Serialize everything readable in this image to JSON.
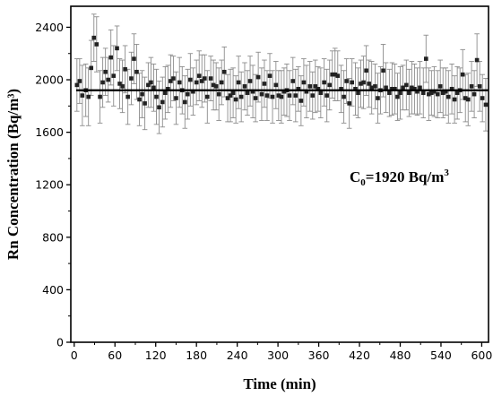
{
  "chart_data": {
    "type": "scatter",
    "title": "",
    "xlabel": "Time (min)",
    "ylabel": "Rn Concentration (Bq/m³)",
    "xlim": [
      -5,
      610
    ],
    "ylim": [
      0,
      2560
    ],
    "x_ticks": [
      0,
      60,
      120,
      180,
      240,
      300,
      360,
      420,
      480,
      540,
      600
    ],
    "y_ticks": [
      0,
      400,
      800,
      1200,
      1600,
      2000,
      2400
    ],
    "grid": false,
    "legend": "none",
    "annotation": {
      "prefix": "C",
      "subscript": "0",
      "text": "=1920 Bq/m",
      "superscript": "3"
    },
    "reference_line": {
      "y": 1920,
      "label": "C0"
    },
    "series": [
      {
        "marker": "square",
        "color": "#222222",
        "error_color": "#8c8c8c",
        "points": [
          [
            4,
            1960,
            200
          ],
          [
            8,
            1990,
            170
          ],
          [
            12,
            1880,
            230
          ],
          [
            17,
            1920,
            200
          ],
          [
            21,
            1870,
            220
          ],
          [
            25,
            2090,
            210
          ],
          [
            29,
            2320,
            180
          ],
          [
            33,
            2270,
            210
          ],
          [
            38,
            1870,
            200
          ],
          [
            42,
            1980,
            190
          ],
          [
            46,
            2060,
            180
          ],
          [
            50,
            2000,
            170
          ],
          [
            54,
            2170,
            210
          ],
          [
            58,
            2030,
            230
          ],
          [
            63,
            2240,
            170
          ],
          [
            67,
            1970,
            190
          ],
          [
            71,
            1950,
            200
          ],
          [
            75,
            2080,
            180
          ],
          [
            79,
            1870,
            210
          ],
          [
            84,
            2010,
            200
          ],
          [
            88,
            2160,
            190
          ],
          [
            92,
            2060,
            210
          ],
          [
            96,
            1850,
            200
          ],
          [
            100,
            1890,
            180
          ],
          [
            104,
            1820,
            200
          ],
          [
            109,
            1960,
            170
          ],
          [
            113,
            1980,
            190
          ],
          [
            117,
            1940,
            180
          ],
          [
            121,
            1870,
            210
          ],
          [
            125,
            1790,
            200
          ],
          [
            130,
            1830,
            190
          ],
          [
            134,
            1900,
            200
          ],
          [
            138,
            1930,
            180
          ],
          [
            142,
            1990,
            200
          ],
          [
            146,
            2010,
            170
          ],
          [
            150,
            1860,
            200
          ],
          [
            155,
            1980,
            190
          ],
          [
            159,
            1920,
            180
          ],
          [
            163,
            1830,
            200
          ],
          [
            167,
            1890,
            190
          ],
          [
            171,
            2000,
            200
          ],
          [
            175,
            1910,
            180
          ],
          [
            180,
            1980,
            170
          ],
          [
            184,
            2030,
            190
          ],
          [
            188,
            1990,
            200
          ],
          [
            192,
            2010,
            180
          ],
          [
            196,
            1870,
            200
          ],
          [
            201,
            2010,
            170
          ],
          [
            205,
            1960,
            190
          ],
          [
            209,
            1950,
            180
          ],
          [
            213,
            1890,
            200
          ],
          [
            217,
            1980,
            170
          ],
          [
            221,
            2060,
            190
          ],
          [
            226,
            1860,
            180
          ],
          [
            230,
            1880,
            200
          ],
          [
            234,
            1900,
            190
          ],
          [
            238,
            1850,
            180
          ],
          [
            242,
            1980,
            200
          ],
          [
            246,
            1870,
            190
          ],
          [
            251,
            1950,
            180
          ],
          [
            255,
            1900,
            170
          ],
          [
            259,
            1990,
            190
          ],
          [
            263,
            1910,
            200
          ],
          [
            267,
            1860,
            180
          ],
          [
            271,
            2020,
            190
          ],
          [
            276,
            1890,
            200
          ],
          [
            280,
            1970,
            180
          ],
          [
            284,
            1880,
            190
          ],
          [
            288,
            2030,
            170
          ],
          [
            292,
            1870,
            200
          ],
          [
            297,
            1960,
            180
          ],
          [
            301,
            1880,
            190
          ],
          [
            305,
            1870,
            200
          ],
          [
            309,
            1910,
            180
          ],
          [
            313,
            1920,
            200
          ],
          [
            317,
            1880,
            190
          ],
          [
            322,
            1990,
            180
          ],
          [
            326,
            1880,
            200
          ],
          [
            330,
            1930,
            170
          ],
          [
            334,
            1840,
            190
          ],
          [
            338,
            1980,
            180
          ],
          [
            342,
            1910,
            200
          ],
          [
            347,
            1950,
            190
          ],
          [
            351,
            1880,
            180
          ],
          [
            355,
            1950,
            200
          ],
          [
            359,
            1930,
            170
          ],
          [
            363,
            1900,
            190
          ],
          [
            368,
            1980,
            180
          ],
          [
            372,
            1880,
            200
          ],
          [
            376,
            1960,
            190
          ],
          [
            380,
            2040,
            180
          ],
          [
            384,
            2040,
            200
          ],
          [
            388,
            2030,
            190
          ],
          [
            393,
            1930,
            180
          ],
          [
            397,
            1870,
            200
          ],
          [
            401,
            1990,
            170
          ],
          [
            405,
            1820,
            190
          ],
          [
            409,
            1980,
            180
          ],
          [
            414,
            1930,
            200
          ],
          [
            418,
            1900,
            190
          ],
          [
            422,
            1970,
            180
          ],
          [
            426,
            1980,
            200
          ],
          [
            430,
            2070,
            190
          ],
          [
            434,
            1970,
            180
          ],
          [
            438,
            1940,
            200
          ],
          [
            443,
            1950,
            170
          ],
          [
            447,
            1860,
            190
          ],
          [
            451,
            1920,
            180
          ],
          [
            455,
            2070,
            200
          ],
          [
            459,
            1940,
            190
          ],
          [
            464,
            1900,
            180
          ],
          [
            468,
            1930,
            200
          ],
          [
            472,
            1930,
            190
          ],
          [
            476,
            1870,
            180
          ],
          [
            480,
            1900,
            200
          ],
          [
            484,
            1940,
            170
          ],
          [
            489,
            1960,
            190
          ],
          [
            493,
            1900,
            180
          ],
          [
            497,
            1940,
            200
          ],
          [
            501,
            1930,
            190
          ],
          [
            505,
            1910,
            180
          ],
          [
            509,
            1940,
            200
          ],
          [
            514,
            1900,
            190
          ],
          [
            518,
            2160,
            180
          ],
          [
            522,
            1890,
            200
          ],
          [
            526,
            1900,
            170
          ],
          [
            530,
            1910,
            190
          ],
          [
            535,
            1890,
            180
          ],
          [
            539,
            1950,
            200
          ],
          [
            543,
            1900,
            190
          ],
          [
            547,
            1910,
            180
          ],
          [
            551,
            1870,
            200
          ],
          [
            556,
            1930,
            190
          ],
          [
            560,
            1850,
            180
          ],
          [
            564,
            1900,
            200
          ],
          [
            568,
            1920,
            170
          ],
          [
            572,
            2040,
            190
          ],
          [
            576,
            1860,
            180
          ],
          [
            580,
            1850,
            200
          ],
          [
            585,
            1950,
            190
          ],
          [
            589,
            1890,
            180
          ],
          [
            593,
            2150,
            200
          ],
          [
            597,
            1950,
            190
          ],
          [
            601,
            1860,
            180
          ],
          [
            606,
            1810,
            200
          ]
        ]
      }
    ]
  }
}
